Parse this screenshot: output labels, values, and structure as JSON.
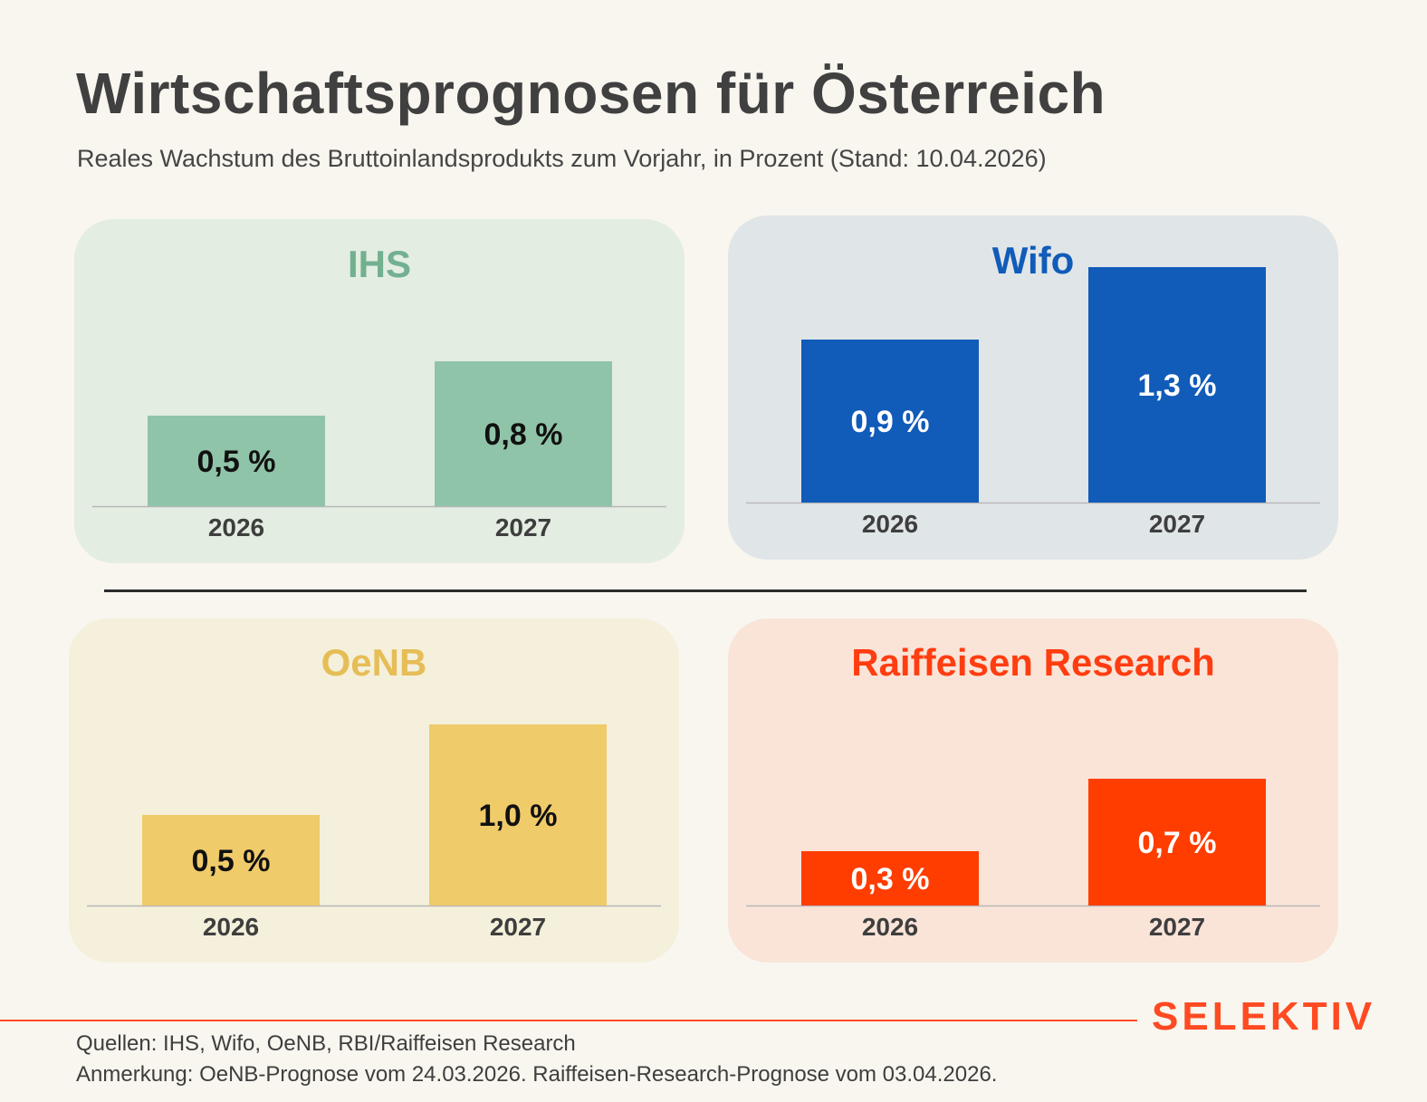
{
  "title": "Wirtschaftsprognosen für Österreich",
  "subtitle": "Reales Wachstum des Bruttoinlandsprodukts zum Vorjahr, in Prozent (Stand: 10.04.2026)",
  "chart_data": [
    {
      "type": "bar",
      "title": "IHS",
      "categories": [
        "2026",
        "2027"
      ],
      "values": [
        0.5,
        0.8
      ],
      "value_labels": [
        "0,5 %",
        "0,8 %"
      ],
      "ylim": [
        0,
        1.3
      ],
      "title_color": "#72b08f",
      "bar_color": "#90c4a8",
      "panel_color": "#e3ede2",
      "label_color": "#111111"
    },
    {
      "type": "bar",
      "title": "Wifo",
      "categories": [
        "2026",
        "2027"
      ],
      "values": [
        0.9,
        1.3
      ],
      "value_labels": [
        "0,9 %",
        "1,3 %"
      ],
      "ylim": [
        0,
        1.3
      ],
      "title_color": "#115bb9",
      "bar_color": "#115bb9",
      "panel_color": "#e0e5e8",
      "label_color": "#ffffff"
    },
    {
      "type": "bar",
      "title": "OeNB",
      "categories": [
        "2026",
        "2027"
      ],
      "values": [
        0.5,
        1.0
      ],
      "value_labels": [
        "0,5 %",
        "1,0 %"
      ],
      "ylim": [
        0,
        1.3
      ],
      "title_color": "#e6bd56",
      "bar_color": "#f0cb6a",
      "panel_color": "#f4f0db",
      "label_color": "#111111"
    },
    {
      "type": "bar",
      "title": "Raiffeisen Research",
      "categories": [
        "2026",
        "2027"
      ],
      "values": [
        0.3,
        0.7
      ],
      "value_labels": [
        "0,3 %",
        "0,7 %"
      ],
      "ylim": [
        0,
        1.3
      ],
      "title_color": "#ff3d10",
      "bar_color": "#ff3d00",
      "panel_color": "#fae4d8",
      "label_color": "#ffffff"
    }
  ],
  "logo": "SELEKTIV",
  "footer": {
    "source": "Quellen: IHS, Wifo, OeNB, RBI/Raiffeisen Research",
    "note": "Anmerkung: OeNB-Prognose vom 24.03.2026. Raiffeisen-Research-Prognose vom 03.04.2026."
  }
}
